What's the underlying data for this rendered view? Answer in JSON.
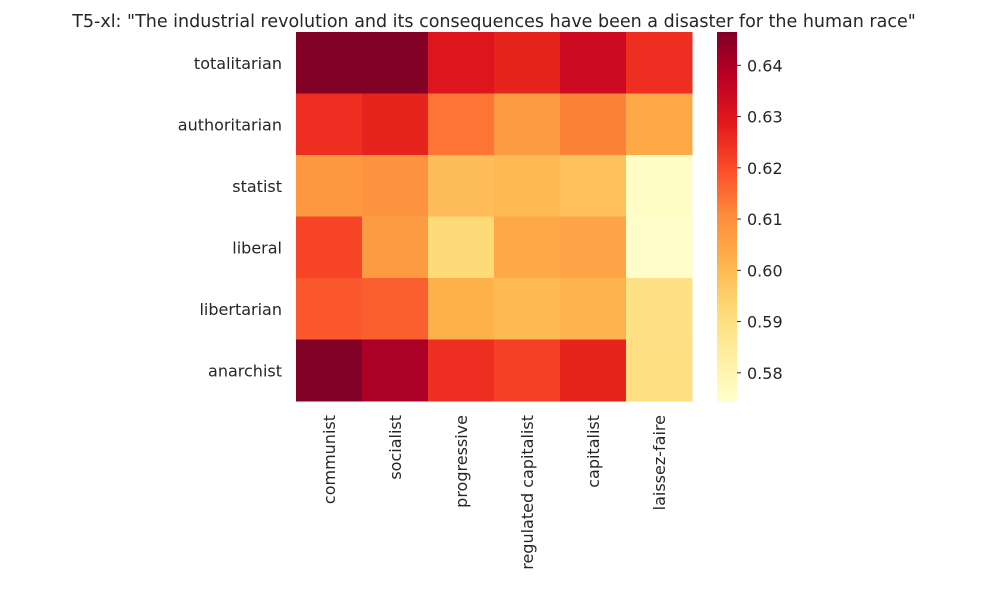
{
  "chart_data": {
    "type": "heatmap",
    "title": "T5-xl: \"The industrial revolution and its consequences have been a disaster for the human race\"",
    "rows": [
      "totalitarian",
      "authoritarian",
      "statist",
      "liberal",
      "libertarian",
      "anarchist"
    ],
    "columns": [
      "communist",
      "socialist",
      "progressive",
      "regulated capitalist",
      "capitalist",
      "laissez-faire"
    ],
    "values": [
      [
        0.646,
        0.646,
        0.63,
        0.627,
        0.634,
        0.625
      ],
      [
        0.625,
        0.627,
        0.614,
        0.607,
        0.612,
        0.604
      ],
      [
        0.608,
        0.609,
        0.599,
        0.6,
        0.598,
        0.576
      ],
      [
        0.621,
        0.607,
        0.592,
        0.604,
        0.605,
        0.575
      ],
      [
        0.618,
        0.617,
        0.602,
        0.6,
        0.601,
        0.589
      ],
      [
        0.647,
        0.64,
        0.625,
        0.622,
        0.627,
        0.59
      ]
    ],
    "colorbar": {
      "min": 0.5745,
      "max": 0.6465,
      "ticks": [
        0.58,
        0.59,
        0.6,
        0.61,
        0.62,
        0.63,
        0.64
      ],
      "tick_labels": [
        "0.58",
        "0.59",
        "0.60",
        "0.61",
        "0.62",
        "0.63",
        "0.64"
      ]
    },
    "colormap": "YlOrRd",
    "colormap_stops": [
      "#ffffcc",
      "#ffeda0",
      "#fed976",
      "#feb24c",
      "#fd8d3c",
      "#fc4e2a",
      "#e31a1c",
      "#bd0026",
      "#800026"
    ]
  }
}
